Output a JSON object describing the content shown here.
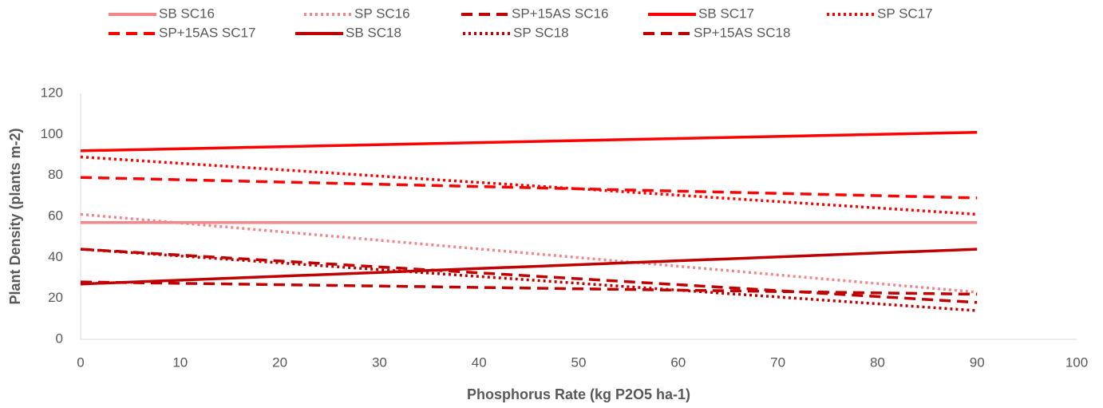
{
  "chart_data": {
    "type": "line",
    "x_label": "Phosphorus Rate (kg P2O5 ha-1)",
    "y_label": "Plant Density (plants m-2)",
    "x": [
      0,
      90
    ],
    "xlim": [
      0,
      100
    ],
    "xticks": [
      0,
      10,
      20,
      30,
      40,
      50,
      60,
      70,
      80,
      90,
      100
    ],
    "ylim": [
      0,
      120
    ],
    "yticks": [
      0,
      20,
      40,
      60,
      80,
      100,
      120
    ],
    "grid": false,
    "legend": "top",
    "series": [
      {
        "name": "SB SC16",
        "color": "#f4868a",
        "style": "solid",
        "values": [
          57,
          57
        ]
      },
      {
        "name": "SP SC16",
        "color": "#f4868a",
        "style": "dotted",
        "values": [
          61,
          23
        ]
      },
      {
        "name": "SP+15AS SC16",
        "color": "#c00000",
        "style": "dashed",
        "values": [
          28,
          22
        ]
      },
      {
        "name": "SB SC17",
        "color": "#ff0000",
        "style": "solid",
        "values": [
          92,
          101
        ]
      },
      {
        "name": "SP SC17",
        "color": "#ff0000",
        "style": "dotted",
        "values": [
          89,
          61
        ]
      },
      {
        "name": "SP+15AS SC17",
        "color": "#ff0000",
        "style": "dashed",
        "values": [
          79,
          69
        ]
      },
      {
        "name": "SB SC18",
        "color": "#c00000",
        "style": "solid",
        "values": [
          27,
          44
        ]
      },
      {
        "name": "SP SC18",
        "color": "#c00000",
        "style": "dotted",
        "values": [
          44,
          14
        ]
      },
      {
        "name": "SP+15AS SC18",
        "color": "#c00000",
        "style": "dashed",
        "values": [
          44,
          18
        ]
      }
    ]
  }
}
